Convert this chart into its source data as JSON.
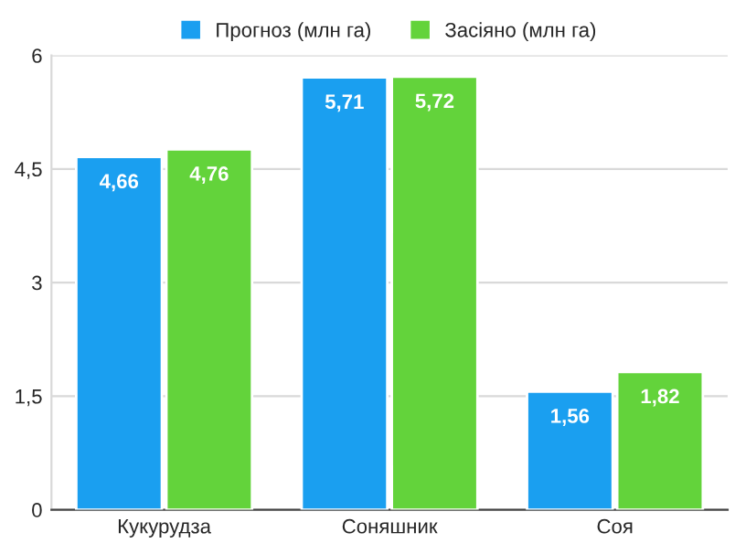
{
  "chart_data": {
    "type": "bar",
    "categories": [
      "Кукурудза",
      "Соняшник",
      "Соя"
    ],
    "series": [
      {
        "name": "Прогноз (млн га)",
        "color": "#1a9ff0",
        "values": [
          4.66,
          5.71,
          1.56
        ],
        "value_labels": [
          "4,66",
          "5,71",
          "1,56"
        ]
      },
      {
        "name": "Засіяно (млн га)",
        "color": "#63d33b",
        "values": [
          4.76,
          5.72,
          1.82
        ],
        "value_labels": [
          "4,76",
          "5,72",
          "1,82"
        ]
      }
    ],
    "ylim": [
      0,
      6
    ],
    "yticks": [
      0,
      {
        "value": 1.5,
        "label": "1,5"
      },
      3,
      {
        "value": 4.5,
        "label": "4,5"
      },
      6
    ],
    "grid": "y",
    "legend": "top"
  }
}
